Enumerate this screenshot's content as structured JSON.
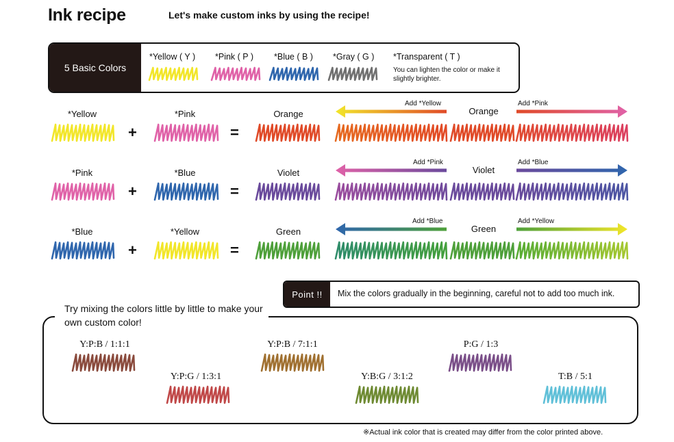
{
  "header": {
    "title": "Ink recipe",
    "subtitle": "Let's make custom inks by using the recipe!"
  },
  "basic": {
    "heading": "5 Basic Colors",
    "items": [
      {
        "label": "*Yellow ( Y )",
        "color": "#f2e62a"
      },
      {
        "label": "*Pink ( P )",
        "color": "#e062a8"
      },
      {
        "label": "*Blue ( B )",
        "color": "#2f66ad"
      },
      {
        "label": "*Gray ( G )",
        "color": "#707070"
      },
      {
        "label": "*Transparent ( T )",
        "color": ""
      }
    ],
    "note": "You can lighten the color or make it slightly brighter."
  },
  "mixes": [
    {
      "a": {
        "label": "*Yellow",
        "color": "#f2e62a"
      },
      "b": {
        "label": "*Pink",
        "color": "#e062a8"
      },
      "result": {
        "label": "Orange",
        "color": "#e04a28"
      },
      "left_label": "Add *Yellow",
      "right_label": "Add *Pink",
      "left_colors": [
        "#f2e62a",
        "#e04a28"
      ],
      "right_colors": [
        "#e04a28",
        "#e062a8"
      ],
      "left_swatch": [
        "#e66a20",
        "#e24a26"
      ],
      "right_swatch": [
        "#e04a30",
        "#dc4060"
      ]
    },
    {
      "a": {
        "label": "*Pink",
        "color": "#e062a8"
      },
      "b": {
        "label": "*Blue",
        "color": "#2f66ad"
      },
      "result": {
        "label": "Violet",
        "color": "#6a4a9c"
      },
      "left_label": "Add *Pink",
      "right_label": "Add *Blue",
      "left_colors": [
        "#e062a8",
        "#6a4a9c"
      ],
      "right_colors": [
        "#6a4a9c",
        "#2f66ad"
      ],
      "left_swatch": [
        "#9a4c9e",
        "#704a9c"
      ],
      "right_swatch": [
        "#684a9c",
        "#4d56a4"
      ]
    },
    {
      "a": {
        "label": "*Blue",
        "color": "#2f66ad"
      },
      "b": {
        "label": "*Yellow",
        "color": "#f2e62a"
      },
      "result": {
        "label": "Green",
        "color": "#4ea03a"
      },
      "left_label": "Add *Blue",
      "right_label": "Add *Yellow",
      "left_colors": [
        "#2f66ad",
        "#4ea03a"
      ],
      "right_colors": [
        "#4ea03a",
        "#f2e62a"
      ],
      "left_swatch": [
        "#2e8c6a",
        "#44a03c"
      ],
      "right_swatch": [
        "#58ac34",
        "#a6c832"
      ]
    }
  ],
  "point": {
    "badge": "Point !!",
    "text": "Mix the colors gradually in the beginning, careful not to add too much ink."
  },
  "custom": {
    "intro": "Try mixing the colors little by little to make your own custom color!",
    "samples": [
      {
        "ratio": "Y:P:B / 1:1:1",
        "color": "#8a4a3c"
      },
      {
        "ratio": "Y:P:G / 1:3:1",
        "color": "#c04848"
      },
      {
        "ratio": "Y:P:B / 7:1:1",
        "color": "#a07030"
      },
      {
        "ratio": "Y:B:G / 3:1:2",
        "color": "#6e8a32"
      },
      {
        "ratio": "P:G / 1:3",
        "color": "#7a4e88"
      },
      {
        "ratio": "T:B / 5:1",
        "color": "#60c0d8"
      }
    ]
  },
  "footnote": "※Actual ink color that is created may differ from the color printed above."
}
